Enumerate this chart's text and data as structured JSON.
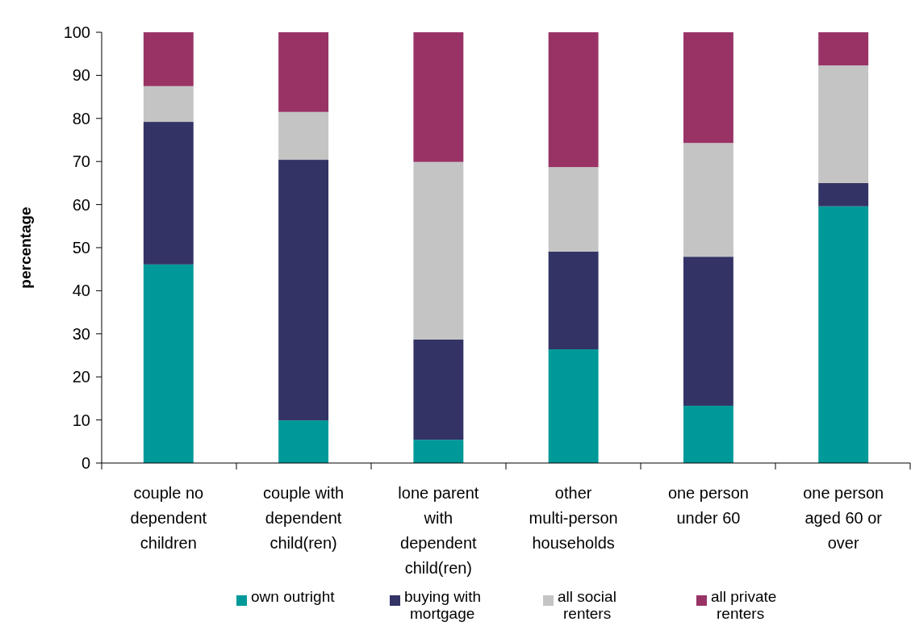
{
  "chart_data": {
    "type": "bar",
    "stacked": true,
    "ylabel": "percentage",
    "categories": [
      "couple no dependent children",
      "couple with dependent child(ren)",
      "lone parent with dependent child(ren)",
      "other multi-person households",
      "one person under 60",
      "one person aged 60 or over"
    ],
    "series": [
      {
        "name": "own outright",
        "color": "#009999",
        "values": [
          46.1,
          9.9,
          5.4,
          26.4,
          13.3,
          59.6
        ]
      },
      {
        "name": "buying with mortgage",
        "color": "#333366",
        "values": [
          33.1,
          60.5,
          23.3,
          22.7,
          34.6,
          5.4
        ]
      },
      {
        "name": "all social renters",
        "color": "#c4c4c4",
        "values": [
          8.3,
          11.1,
          41.2,
          19.6,
          26.4,
          27.3
        ]
      },
      {
        "name": "all private renters",
        "color": "#993366",
        "values": [
          12.5,
          18.5,
          30.1,
          31.3,
          25.7,
          7.7
        ]
      }
    ],
    "ylim": [
      0,
      100
    ],
    "yticks": [
      0,
      10,
      20,
      30,
      40,
      50,
      60,
      70,
      80,
      90,
      100
    ],
    "grid": false,
    "legend": "bottom"
  }
}
